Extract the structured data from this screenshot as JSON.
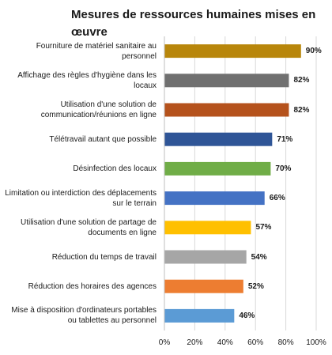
{
  "chart_data": {
    "type": "bar",
    "orientation": "horizontal",
    "title": "Mesures de ressources humaines mises en œuvre",
    "xlim": [
      0,
      100
    ],
    "x_ticks": [
      "0%",
      "20%",
      "40%",
      "60%",
      "80%",
      "100%"
    ],
    "gridlines": "vertical",
    "legend": "none",
    "categories": [
      "Fourniture de matériel sanitaire au personnel",
      "Affichage des règles d'hygiène dans les locaux",
      "Utilisation d'une solution de communication/réunions en ligne",
      "Télétravail autant que possible",
      "Désinfection des locaux",
      "Limitation ou interdiction des déplacements sur le terrain",
      "Utilisation d'une solution de partage de documents en ligne",
      "Réduction du temps de travail",
      "Réduction des horaires des agences",
      "Mise à disposition d'ordinateurs portables ou tablettes au personnel"
    ],
    "values": [
      90,
      82,
      82,
      71,
      70,
      66,
      57,
      54,
      52,
      46
    ],
    "value_labels": [
      "90%",
      "82%",
      "82%",
      "71%",
      "70%",
      "66%",
      "57%",
      "54%",
      "52%",
      "46%"
    ],
    "colors": [
      "#b8860b",
      "#707070",
      "#b5521c",
      "#2f5597",
      "#70ad47",
      "#4472c4",
      "#ffc000",
      "#a6a6a6",
      "#ed7d31",
      "#5b9bd5"
    ]
  }
}
